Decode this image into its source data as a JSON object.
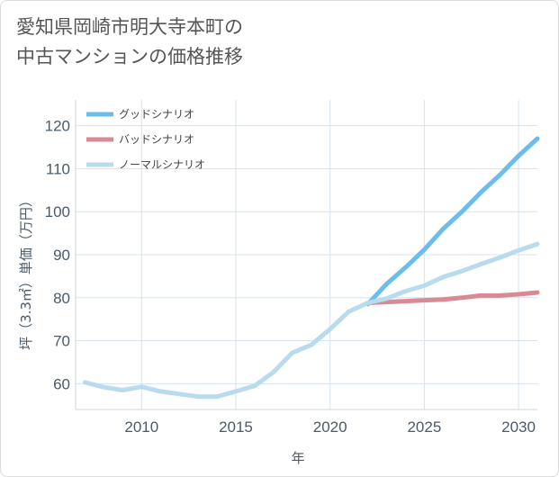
{
  "title_lines": [
    "愛知県岡崎市明大寺本町の",
    "中古マンションの価格推移"
  ],
  "chart_data": {
    "type": "line",
    "title": "愛知県岡崎市明大寺本町の中古マンションの価格推移",
    "xlabel": "年",
    "ylabel": "坪（3.3㎡）単価（万円）",
    "xlim": [
      2006.5,
      2031
    ],
    "ylim": [
      54,
      126
    ],
    "xticks": [
      2010,
      2015,
      2020,
      2025,
      2030
    ],
    "yticks": [
      60,
      70,
      80,
      90,
      100,
      110,
      120
    ],
    "grid": true,
    "legend_position": "top-left",
    "series": [
      {
        "name": "グッドシナリオ",
        "color": "#6cbcec",
        "x": [
          2022,
          2023,
          2024,
          2025,
          2026,
          2027,
          2028,
          2029,
          2030,
          2031
        ],
        "y": [
          78.5,
          83.2,
          87.0,
          91.2,
          96.0,
          100.0,
          104.5,
          108.5,
          113.0,
          117.0
        ]
      },
      {
        "name": "バッドシナリオ",
        "color": "#d98a93",
        "x": [
          2022,
          2023,
          2024,
          2025,
          2026,
          2027,
          2028,
          2029,
          2030,
          2031
        ],
        "y": [
          78.8,
          79.0,
          79.2,
          79.4,
          79.6,
          80.0,
          80.5,
          80.5,
          80.8,
          81.2
        ]
      },
      {
        "name": "ノーマルシナリオ",
        "color": "#b8dcee",
        "x": [
          2007,
          2008,
          2009,
          2010,
          2011,
          2012,
          2013,
          2014,
          2015,
          2016,
          2017,
          2018,
          2019,
          2020,
          2021,
          2022,
          2023,
          2024,
          2025,
          2026,
          2027,
          2028,
          2029,
          2030,
          2031
        ],
        "y": [
          60.3,
          59.2,
          58.5,
          59.3,
          58.2,
          57.6,
          57.0,
          57.0,
          58.2,
          59.5,
          62.7,
          67.2,
          69.0,
          72.7,
          76.8,
          78.8,
          79.8,
          81.5,
          82.8,
          84.8,
          86.2,
          87.8,
          89.3,
          91.0,
          92.5
        ]
      }
    ]
  }
}
